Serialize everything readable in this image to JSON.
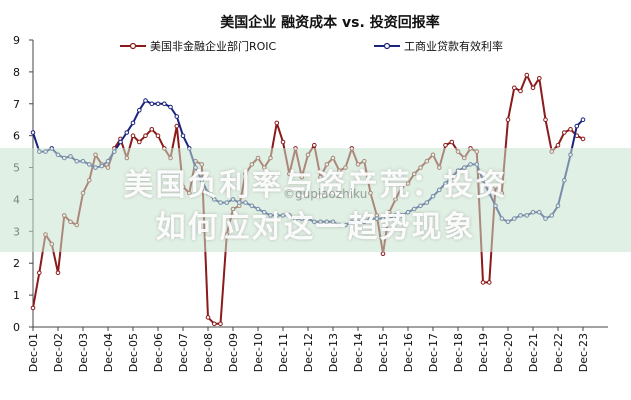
{
  "chart_data": {
    "type": "line",
    "title": "美国企业 融资成本 vs. 投资回报率",
    "ylim": [
      0,
      9
    ],
    "yticks": [
      0,
      1,
      2,
      3,
      4,
      5,
      6,
      7,
      8,
      9
    ],
    "xlim": [
      2001,
      2024
    ],
    "xticks": [
      "Dec-01",
      "Dec-02",
      "Dec-03",
      "Dec-04",
      "Dec-05",
      "Dec-06",
      "Dec-07",
      "Dec-08",
      "Dec-09",
      "Dec-10",
      "Dec-11",
      "Dec-12",
      "Dec-13",
      "Dec-14",
      "Dec-15",
      "Dec-16",
      "Dec-17",
      "Dec-18",
      "Dec-19",
      "Dec-20",
      "Dec-21",
      "Dec-22",
      "Dec-23"
    ],
    "legend_placement": "top",
    "series": [
      {
        "name": "美国非金融企业部门ROIC",
        "color": "#8B1A1A",
        "x": [
          2001.0,
          2001.25,
          2001.5,
          2001.75,
          2002.0,
          2002.25,
          2002.5,
          2002.75,
          2003.0,
          2003.25,
          2003.5,
          2003.75,
          2004.0,
          2004.25,
          2004.5,
          2004.75,
          2005.0,
          2005.25,
          2005.5,
          2005.75,
          2006.0,
          2006.25,
          2006.5,
          2006.75,
          2007.0,
          2007.25,
          2007.5,
          2007.75,
          2008.0,
          2008.25,
          2008.5,
          2008.75,
          2009.0,
          2009.25,
          2009.5,
          2009.75,
          2010.0,
          2010.25,
          2010.5,
          2010.75,
          2011.0,
          2011.25,
          2011.5,
          2011.75,
          2012.0,
          2012.25,
          2012.5,
          2012.75,
          2013.0,
          2013.25,
          2013.5,
          2013.75,
          2014.0,
          2014.25,
          2014.5,
          2014.75,
          2015.0,
          2015.25,
          2015.5,
          2015.75,
          2016.0,
          2016.25,
          2016.5,
          2016.75,
          2017.0,
          2017.25,
          2017.5,
          2017.75,
          2018.0,
          2018.25,
          2018.5,
          2018.75,
          2019.0,
          2019.25,
          2019.5,
          2019.75,
          2020.0,
          2020.25,
          2020.5,
          2020.75,
          2021.0,
          2021.25,
          2021.5,
          2021.75,
          2022.0,
          2022.25,
          2022.5,
          2022.75,
          2023.0
        ],
        "values": [
          0.6,
          1.7,
          2.9,
          2.6,
          1.7,
          3.5,
          3.3,
          3.2,
          4.2,
          4.6,
          5.4,
          5.1,
          5.0,
          5.6,
          5.9,
          5.3,
          6.0,
          5.8,
          6.0,
          6.2,
          6.0,
          5.6,
          5.3,
          6.3,
          4.4,
          4.2,
          5.2,
          5.1,
          0.3,
          0.1,
          0.1,
          2.9,
          3.7,
          3.8,
          4.8,
          5.1,
          5.3,
          5.0,
          5.3,
          6.4,
          5.8,
          4.8,
          5.6,
          4.7,
          5.4,
          5.7,
          4.7,
          5.1,
          5.3,
          4.9,
          5.0,
          5.6,
          5.1,
          5.2,
          4.2,
          3.5,
          2.3,
          3.6,
          4.0,
          4.4,
          4.5,
          4.8,
          5.0,
          5.2,
          5.4,
          5.0,
          5.7,
          5.8,
          5.5,
          5.3,
          5.6,
          5.5,
          1.4,
          1.4,
          4.4,
          4.2,
          6.5,
          7.5,
          7.4,
          7.9,
          7.5,
          7.8,
          6.5,
          5.5,
          5.7,
          6.1,
          6.2,
          6.0,
          5.9
        ]
      },
      {
        "name": "工商业贷款有效利率",
        "color": "#1A237E",
        "x": [
          2001.0,
          2001.25,
          2001.5,
          2001.75,
          2002.0,
          2002.25,
          2002.5,
          2002.75,
          2003.0,
          2003.25,
          2003.5,
          2003.75,
          2004.0,
          2004.25,
          2004.5,
          2004.75,
          2005.0,
          2005.25,
          2005.5,
          2005.75,
          2006.0,
          2006.25,
          2006.5,
          2006.75,
          2007.0,
          2007.25,
          2007.5,
          2007.75,
          2008.0,
          2008.25,
          2008.5,
          2008.75,
          2009.0,
          2009.25,
          2009.5,
          2009.75,
          2010.0,
          2010.25,
          2010.5,
          2010.75,
          2011.0,
          2011.25,
          2011.5,
          2011.75,
          2012.0,
          2012.25,
          2012.5,
          2012.75,
          2013.0,
          2013.25,
          2013.5,
          2013.75,
          2014.0,
          2014.25,
          2014.5,
          2014.75,
          2015.0,
          2015.25,
          2015.5,
          2015.75,
          2016.0,
          2016.25,
          2016.5,
          2016.75,
          2017.0,
          2017.25,
          2017.5,
          2017.75,
          2018.0,
          2018.25,
          2018.5,
          2018.75,
          2019.0,
          2019.25,
          2019.5,
          2019.75,
          2020.0,
          2020.25,
          2020.5,
          2020.75,
          2021.0,
          2021.25,
          2021.5,
          2021.75,
          2022.0,
          2022.25,
          2022.5,
          2022.75,
          2023.0
        ],
        "values": [
          6.1,
          5.5,
          5.5,
          5.6,
          5.4,
          5.3,
          5.35,
          5.2,
          5.2,
          5.1,
          5.0,
          5.05,
          5.2,
          5.5,
          5.8,
          6.1,
          6.4,
          6.8,
          7.1,
          7.0,
          7.0,
          7.0,
          6.9,
          6.6,
          6.0,
          5.6,
          5.0,
          4.6,
          4.2,
          4.0,
          3.9,
          3.9,
          4.0,
          3.9,
          3.9,
          3.8,
          3.7,
          3.6,
          3.5,
          3.5,
          3.5,
          3.5,
          3.4,
          3.4,
          3.4,
          3.3,
          3.3,
          3.3,
          3.3,
          3.2,
          3.2,
          3.3,
          3.3,
          3.3,
          3.4,
          3.4,
          3.4,
          3.4,
          3.5,
          3.5,
          3.6,
          3.7,
          3.8,
          3.9,
          4.1,
          4.3,
          4.5,
          4.7,
          4.9,
          5.0,
          5.1,
          5.1,
          4.6,
          4.2,
          3.8,
          3.4,
          3.3,
          3.4,
          3.5,
          3.5,
          3.6,
          3.6,
          3.4,
          3.5,
          3.8,
          4.6,
          5.4,
          6.3,
          6.5
        ]
      }
    ]
  },
  "overlay": {
    "line1": "美国负利率与资产荒：投资",
    "line2": "如何应对这一趋势现象",
    "watermark": "©gupiaozhiku"
  }
}
